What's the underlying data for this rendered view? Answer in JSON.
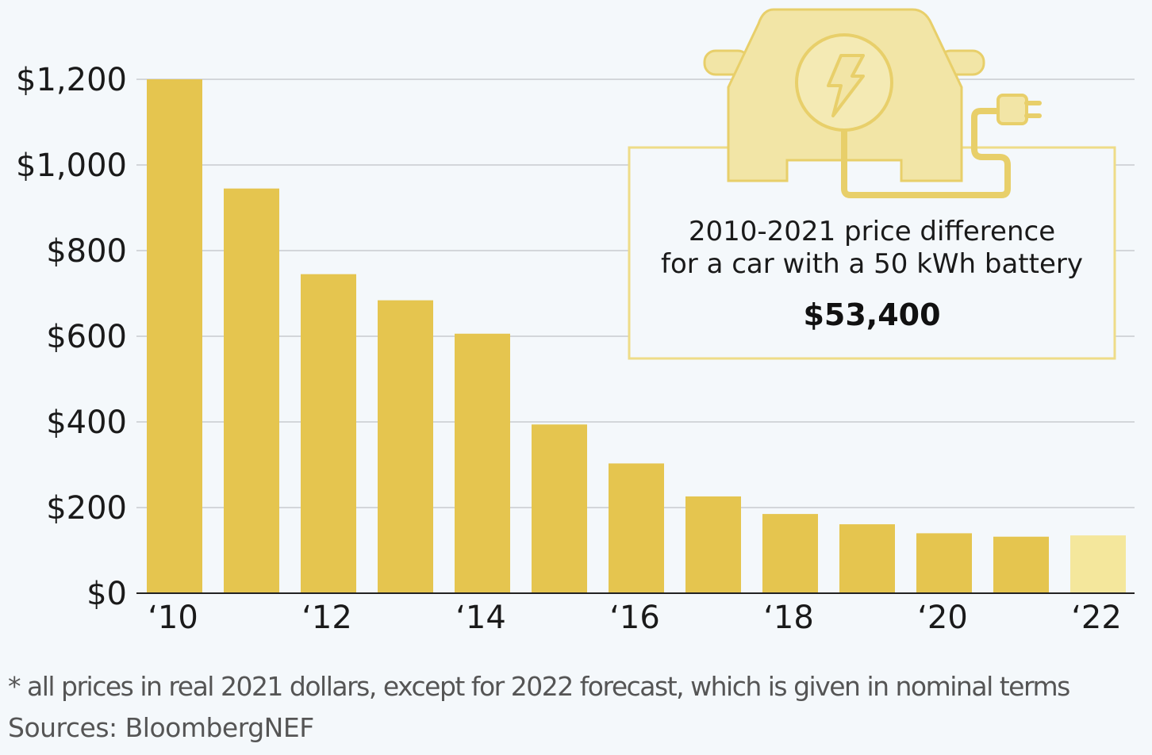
{
  "chart_data": {
    "type": "bar",
    "title": "",
    "xlabel": "",
    "ylabel": "",
    "ylim": [
      0,
      1200
    ],
    "y_ticks": [
      "$0",
      "$200",
      "$400",
      "$600",
      "$800",
      "$1,000",
      "$1,200"
    ],
    "y_tick_values": [
      0,
      200,
      400,
      600,
      800,
      1000,
      1200
    ],
    "categories": [
      "2010",
      "2011",
      "2012",
      "2013",
      "2014",
      "2015",
      "2016",
      "2017",
      "2018",
      "2019",
      "2020",
      "2021",
      "2022"
    ],
    "x_tick_labels": [
      "‘10",
      "",
      "‘12",
      "",
      "‘14",
      "",
      "‘16",
      "",
      "‘18",
      "",
      "‘20",
      "",
      "‘22"
    ],
    "values": [
      1200,
      945,
      745,
      684,
      606,
      394,
      303,
      226,
      185,
      161,
      140,
      132,
      135
    ],
    "forecast_index": 12,
    "colors": {
      "actual": "#e5c54f",
      "forecast": "#f4e79c",
      "grid": "#c8cbcf",
      "background": "#f4f8fb"
    },
    "grid": true,
    "annotation": {
      "line1": "2010-2021 price difference",
      "line2": "for a car with a 50 kWh battery",
      "value": "$53,400",
      "icon": "electric-car-icon"
    }
  },
  "footnotes": {
    "note": "* all prices in real 2021 dollars, except for 2022 forecast, which is given in nominal terms",
    "source": "Sources: BloombergNEF"
  }
}
